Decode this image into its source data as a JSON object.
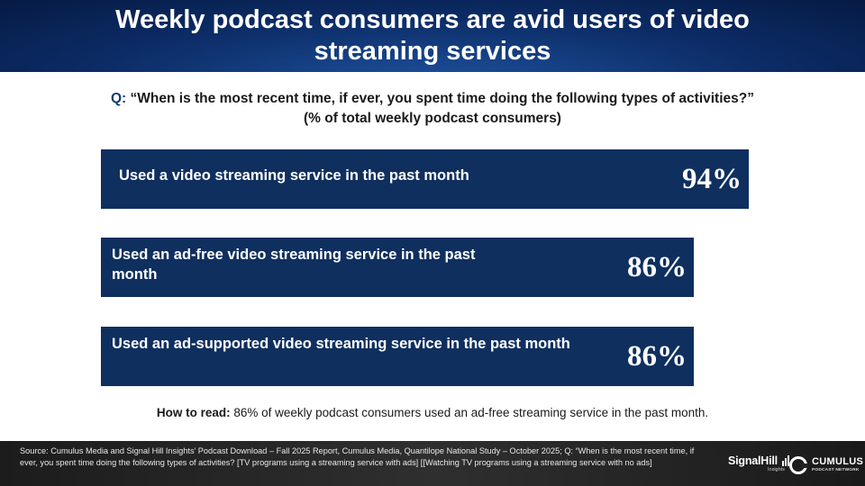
{
  "header": {
    "title": "Weekly podcast consumers are avid users of video streaming services"
  },
  "question": {
    "prefix": "Q:",
    "text": "“When is the most recent time, if ever, you spent time doing the following types of activities?”",
    "subtext": "(% of total weekly podcast consumers)"
  },
  "chart_data": {
    "type": "bar",
    "orientation": "horizontal",
    "categories": [
      "Used a video streaming service in the past month",
      "Used an ad-free video streaming service in the past month",
      "Used an ad-supported video streaming service in the past month"
    ],
    "values": [
      94,
      86,
      86
    ],
    "value_labels": [
      "94%",
      "86%",
      "86%"
    ],
    "xlim": [
      0,
      100
    ],
    "grid": false,
    "legend": "none",
    "bar_color": "#0f2f5f"
  },
  "how_to_read": {
    "label": "How to read:",
    "text": "86% of weekly podcast consumers used an ad-free streaming service in the past month."
  },
  "footer": {
    "source": "Source: Cumulus Media and Signal Hill Insights’ Podcast Download – Fall 2025 Report, Cumulus Media, Quantilope National Study – October 2025; Q: “When is the most recent time, if ever, you spent time doing the following types of activities? [TV programs using a streaming service with ads] [[Watching TV programs using a streaming service with no ads]",
    "logo_signalhill": "SignalHill",
    "logo_signalhill_sub": "Insights",
    "logo_cumulus": "CUMULUS",
    "logo_cumulus_sub": "PODCAST NETWORK"
  }
}
